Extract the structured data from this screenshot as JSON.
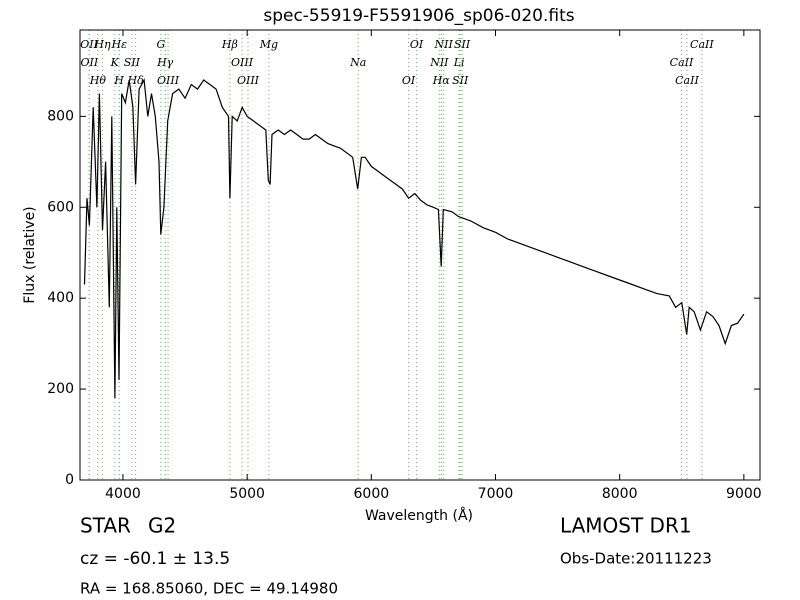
{
  "chart_data": {
    "type": "line",
    "title": "spec-55919-F5591906_sp06-020.fits",
    "x_label": "Wavelength (Å)",
    "y_label": "Flux (relative)",
    "xlim": [
      3654,
      9130
    ],
    "ylim": [
      0,
      990
    ],
    "xticks": [
      4000,
      5000,
      6000,
      7000,
      8000,
      9000
    ],
    "yticks": [
      0,
      200,
      400,
      600,
      800
    ],
    "x": [
      3690,
      3710,
      3730,
      3760,
      3790,
      3810,
      3835,
      3860,
      3890,
      3910,
      3935,
      3950,
      3968,
      3990,
      4020,
      4050,
      4080,
      4102,
      4130,
      4170,
      4200,
      4230,
      4260,
      4290,
      4305,
      4330,
      4360,
      4400,
      4450,
      4500,
      4550,
      4600,
      4650,
      4700,
      4750,
      4800,
      4850,
      4861,
      4880,
      4920,
      4960,
      5000,
      5050,
      5100,
      5150,
      5170,
      5185,
      5200,
      5250,
      5300,
      5350,
      5400,
      5450,
      5500,
      5550,
      5600,
      5650,
      5700,
      5750,
      5800,
      5850,
      5890,
      5920,
      5950,
      6000,
      6050,
      6100,
      6150,
      6200,
      6250,
      6300,
      6350,
      6400,
      6450,
      6500,
      6540,
      6563,
      6580,
      6650,
      6700,
      6800,
      6900,
      7000,
      7100,
      7200,
      7300,
      7400,
      7500,
      7600,
      7700,
      7800,
      7900,
      8000,
      8100,
      8200,
      8300,
      8400,
      8450,
      8500,
      8540,
      8560,
      8600,
      8650,
      8700,
      8750,
      8800,
      8850,
      8900,
      8950,
      9000
    ],
    "series": [
      {
        "name": "flux",
        "color": "#000000",
        "values": [
          430,
          620,
          560,
          820,
          600,
          850,
          550,
          700,
          380,
          800,
          180,
          600,
          220,
          850,
          830,
          880,
          820,
          650,
          860,
          880,
          800,
          850,
          800,
          700,
          540,
          600,
          790,
          850,
          860,
          840,
          870,
          860,
          880,
          870,
          860,
          820,
          800,
          620,
          800,
          790,
          820,
          800,
          790,
          780,
          770,
          660,
          650,
          760,
          770,
          760,
          770,
          760,
          750,
          750,
          760,
          750,
          740,
          735,
          730,
          720,
          710,
          640,
          710,
          710,
          690,
          680,
          670,
          660,
          650,
          640,
          620,
          630,
          615,
          605,
          600,
          595,
          470,
          595,
          590,
          580,
          570,
          555,
          545,
          530,
          520,
          510,
          500,
          490,
          480,
          470,
          460,
          450,
          440,
          430,
          420,
          410,
          405,
          380,
          390,
          320,
          380,
          370,
          330,
          370,
          360,
          340,
          300,
          340,
          345,
          365
        ]
      }
    ],
    "line_markers": [
      {
        "label": "OII",
        "wavelength": 3727
      },
      {
        "label": "OII",
        "wavelength": 3729
      },
      {
        "label": "Hθ",
        "wavelength": 3798
      },
      {
        "label": "Hη",
        "wavelength": 3835
      },
      {
        "label": "K",
        "wavelength": 3934
      },
      {
        "label": "H",
        "wavelength": 3968
      },
      {
        "label": "Hε",
        "wavelength": 3970
      },
      {
        "label": "SII",
        "wavelength": 4072
      },
      {
        "label": "Hδ",
        "wavelength": 4102
      },
      {
        "label": "G",
        "wavelength": 4305
      },
      {
        "label": "Hγ",
        "wavelength": 4340
      },
      {
        "label": "OIII",
        "wavelength": 4363
      },
      {
        "label": "Hβ",
        "wavelength": 4861
      },
      {
        "label": "OIII",
        "wavelength": 4959
      },
      {
        "label": "OIII",
        "wavelength": 5007
      },
      {
        "label": "Mg",
        "wavelength": 5175
      },
      {
        "label": "Na",
        "wavelength": 5894
      },
      {
        "label": "OI",
        "wavelength": 6300
      },
      {
        "label": "OI",
        "wavelength": 6364
      },
      {
        "label": "NII",
        "wavelength": 6548
      },
      {
        "label": "Hα",
        "wavelength": 6563
      },
      {
        "label": "NII",
        "wavelength": 6583
      },
      {
        "label": "Li",
        "wavelength": 6707
      },
      {
        "label": "SII",
        "wavelength": 6716
      },
      {
        "label": "SII",
        "wavelength": 6731
      },
      {
        "label": "CaII",
        "wavelength": 8498
      },
      {
        "label": "CaII",
        "wavelength": 8542
      },
      {
        "label": "CaII",
        "wavelength": 8662
      }
    ],
    "marker_color": "#5cb85c",
    "info": {
      "object_class": "STAR",
      "subclass": "G2",
      "redshift": "cz = -60.1 ± 13.5",
      "coords": "RA = 168.85060, DEC = 49.14980",
      "survey": "LAMOST DR1",
      "obs_date": "Obs-Date:20111223"
    }
  }
}
